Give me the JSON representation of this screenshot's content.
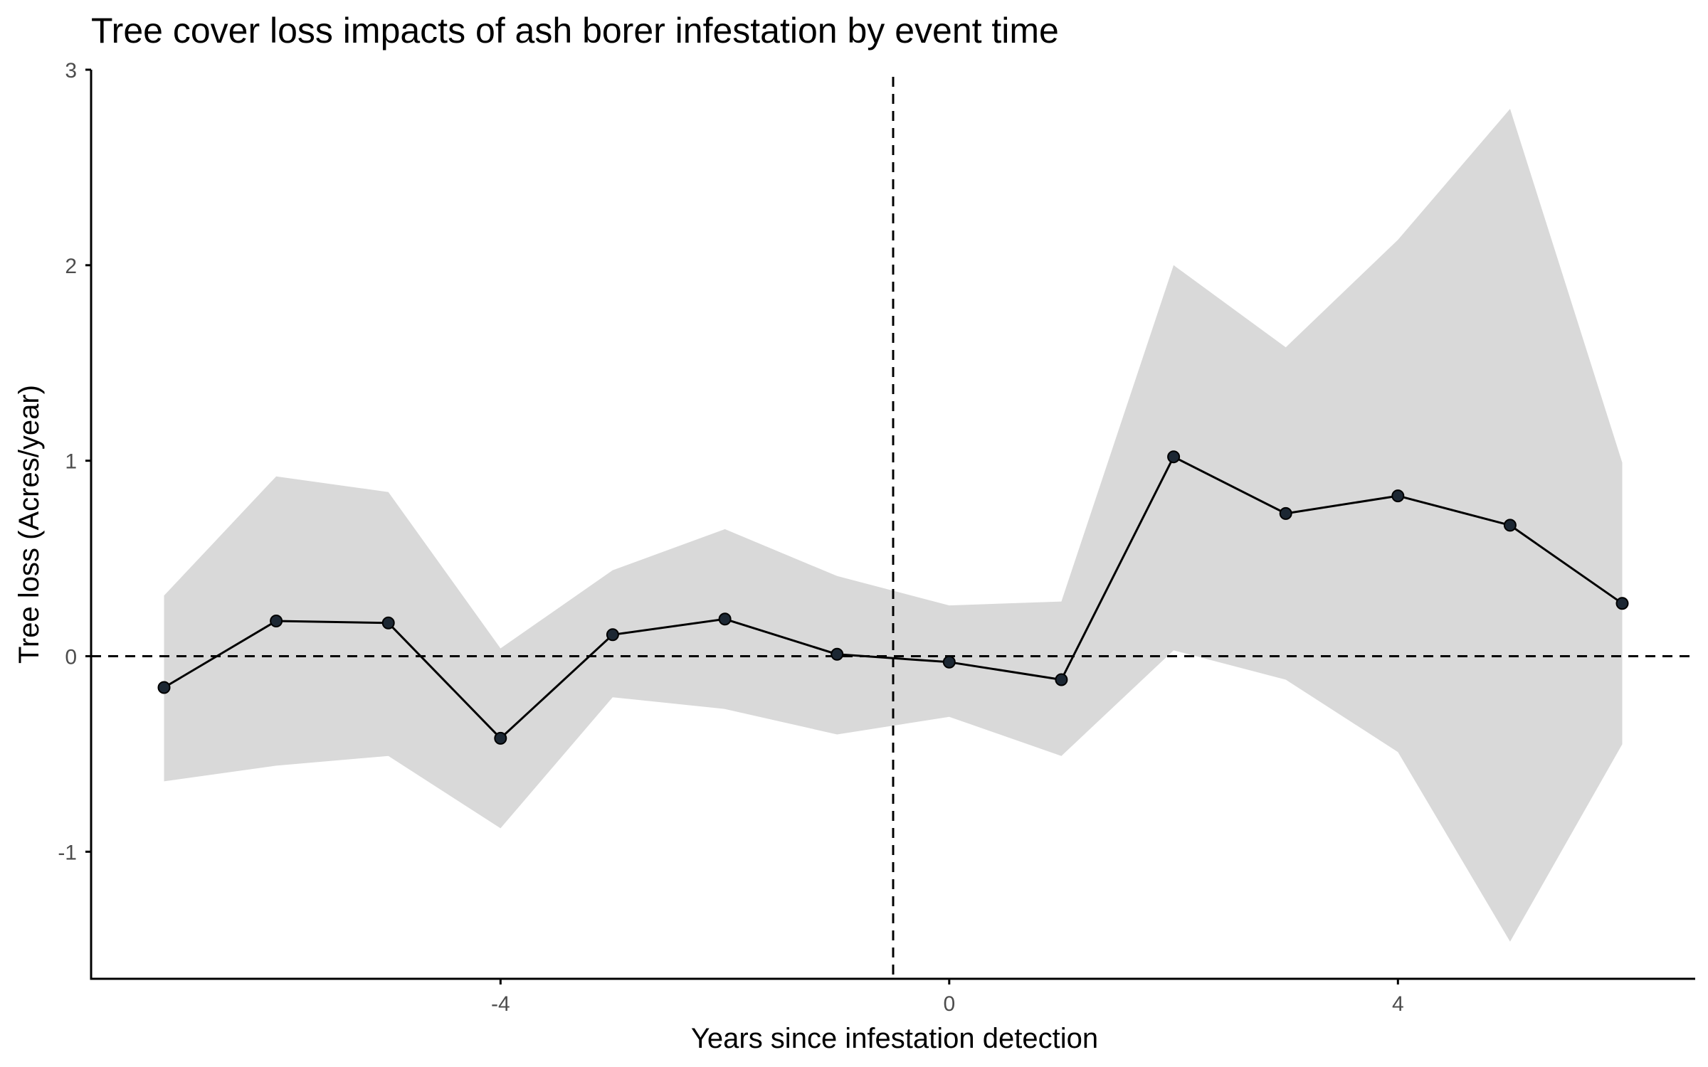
{
  "chart_data": {
    "type": "line",
    "title": "Tree cover loss impacts of ash borer infestation by event time",
    "xlabel": "Years since infestation detection",
    "ylabel": "Tree loss (Acres/year)",
    "xlim": [
      -7.65,
      6.65
    ],
    "ylim": [
      -1.65,
      3.0
    ],
    "x_ticks": [
      -4,
      0,
      4
    ],
    "x_tick_labels": [
      "-4",
      "0",
      "4"
    ],
    "y_ticks": [
      -1,
      0,
      1,
      2,
      3
    ],
    "y_tick_labels": [
      "-1",
      "0",
      "1",
      "2",
      "3"
    ],
    "grid": false,
    "legend": "none",
    "reference_lines": {
      "horizontal_y": 0,
      "vertical_x": -0.5
    },
    "series": [
      {
        "x": [
          -7,
          -6,
          -5,
          -4,
          -3,
          -2,
          -1,
          0,
          1,
          2,
          3,
          4,
          5,
          6
        ],
        "values": [
          -0.16,
          0.18,
          0.17,
          -0.42,
          0.11,
          0.19,
          0.01,
          -0.03,
          -0.12,
          1.02,
          0.73,
          0.82,
          0.67,
          0.27
        ],
        "ci_lower": [
          -0.64,
          -0.56,
          -0.51,
          -0.88,
          -0.21,
          -0.27,
          -0.4,
          -0.31,
          -0.51,
          0.03,
          -0.12,
          -0.49,
          -1.46,
          -0.45
        ],
        "ci_upper": [
          0.31,
          0.92,
          0.84,
          0.04,
          0.44,
          0.65,
          0.41,
          0.26,
          0.28,
          2.0,
          1.58,
          2.13,
          2.8,
          0.99
        ]
      }
    ],
    "colors": {
      "line": "#000000",
      "point_fill": "#1c2733",
      "ci_band": "#d9d9d9",
      "axis": "#000000",
      "tick_label": "#4d4d4d"
    }
  }
}
